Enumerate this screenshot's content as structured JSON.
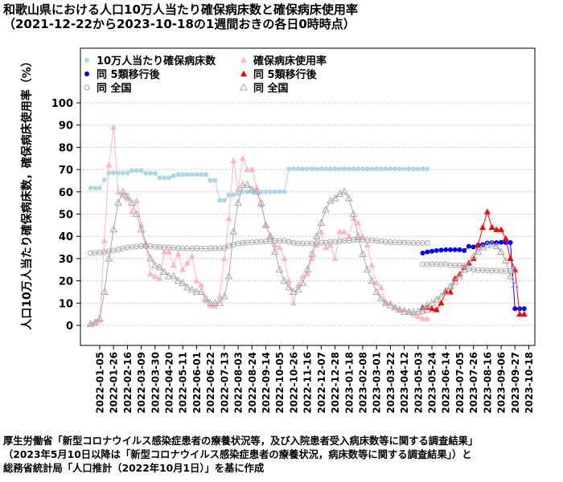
{
  "chart_data": {
    "type": "line",
    "title": "和歌山県における人口10万人当たり確保病床数と確保病床使用率",
    "subtitle": "（2021-12-22から2023-10-18の1週間おきの各日0時時点）",
    "ylabel": "人口10万人当たり確保病床数，確保病床使用率（%）",
    "ylim": [
      0,
      100
    ],
    "yticks": [
      0,
      10,
      20,
      30,
      40,
      50,
      60,
      70,
      80,
      90,
      100
    ],
    "grid": true,
    "legend_position": "top-left",
    "x_start": "2021-12-22",
    "x_end": "2023-10-18",
    "x_tick_labels": [
      "2022-01-05",
      "2022-01-26",
      "2022-02-16",
      "2022-03-09",
      "2022-03-30",
      "2022-04-20",
      "2022-05-11",
      "2022-06-01",
      "2022-06-22",
      "2022-07-13",
      "2022-08-03",
      "2022-08-24",
      "2022-09-14",
      "2022-10-05",
      "2022-10-26",
      "2022-11-16",
      "2022-12-07",
      "2022-12-28",
      "2023-01-18",
      "2023-02-08",
      "2023-03-01",
      "2023-03-22",
      "2023-04-12",
      "2023-05-03",
      "2023-05-24",
      "2023-06-14",
      "2023-07-05",
      "2023-07-26",
      "2023-08-16",
      "2023-09-06",
      "2023-09-27",
      "2023-10-18"
    ],
    "series": [
      {
        "name": "10万人当たり確保病床数",
        "color": "#add8e6",
        "marker": "circle",
        "start": "2021-12-22",
        "values": [
          61.7,
          61.7,
          61.7,
          65.4,
          68.5,
          68.5,
          68.5,
          68.5,
          68.5,
          69.6,
          69.6,
          69.6,
          68.3,
          68.3,
          68.3,
          66.3,
          66.3,
          66.3,
          67.2,
          67.8,
          67.8,
          67.8,
          67.8,
          67.8,
          67.8,
          67.8,
          65.1,
          65.1,
          56.2,
          56.2,
          58.6,
          58.6,
          59.1,
          60.0,
          60.0,
          60.0,
          60.0,
          60.0,
          60.0,
          60.0,
          60.0,
          60.0,
          60.0,
          70.3,
          70.3,
          70.3,
          70.3,
          70.3,
          70.3,
          70.3,
          70.3,
          70.3,
          70.3,
          70.3,
          70.3,
          70.3,
          70.3,
          70.3,
          70.3,
          70.3,
          70.3,
          70.3,
          70.3,
          70.3,
          70.3,
          70.3,
          70.3,
          70.3,
          70.3,
          70.3,
          70.3,
          70.3,
          70.3,
          70.3
        ]
      },
      {
        "name": "確保病床使用率",
        "color": "#ffb6c1",
        "marker": "triangle",
        "start": "2021-12-22",
        "values": [
          0.5,
          1.0,
          2.1,
          38.0,
          72.0,
          89.0,
          60.0,
          58.5,
          57.0,
          51.0,
          56.0,
          45.0,
          37.0,
          23.0,
          22.0,
          21.0,
          33.0,
          33.0,
          27.0,
          32.0,
          25.0,
          28.0,
          31.0,
          20.0,
          18.0,
          11.0,
          9.0,
          8.5,
          13.0,
          30.0,
          48.0,
          74.0,
          61.0,
          75.0,
          70.0,
          70.0,
          62.0,
          54.0,
          45.0,
          40.0,
          36.0,
          35.0,
          30.0,
          20.0,
          10.0,
          18.0,
          22.0,
          23.0,
          30.0,
          36.0,
          42.0,
          35.0,
          36.0,
          30.0,
          42.0,
          42.0,
          40.0,
          48.0,
          46.0,
          40.0,
          36.0,
          27.0,
          19.0,
          17.0,
          10.0,
          10.0,
          8.0,
          7.0,
          7.0,
          6.0,
          5.0,
          4.0,
          3.0,
          3.0
        ]
      },
      {
        "name": "同 5類移行後",
        "color": "#0000ff",
        "marker": "circle",
        "start": "2023-05-10",
        "values": [
          32.5,
          33.0,
          33.3,
          33.6,
          33.8,
          34.0,
          34.0,
          34.0,
          34.0,
          33.6,
          35.5,
          35.2,
          36.0,
          36.3,
          37.0,
          37.2,
          37.2,
          37.3,
          37.2,
          37.2,
          7.5,
          7.5,
          7.5
        ]
      },
      {
        "name": "同 5類移行後",
        "color": "#ff0000",
        "marker": "triangle",
        "start": "2023-05-10",
        "values": [
          8.0,
          8.0,
          7.5,
          7.0,
          10.0,
          15.0,
          15.0,
          21.0,
          23.0,
          26.0,
          28.0,
          30.0,
          36.0,
          44.0,
          51.0,
          44.0,
          43.0,
          43.0,
          39.0,
          30.0,
          25.0,
          5.0,
          5.0
        ]
      },
      {
        "name": "同 全国",
        "color": "#a9a9a9",
        "marker": "open-circle",
        "start": "2021-12-22",
        "values": [
          32.5,
          32.6,
          32.8,
          33.0,
          33.3,
          33.6,
          34.0,
          34.5,
          35.0,
          35.3,
          35.5,
          35.6,
          35.6,
          35.6,
          35.3,
          35.2,
          35.0,
          35.0,
          34.8,
          34.6,
          34.6,
          34.5,
          34.5,
          34.5,
          34.5,
          34.5,
          34.6,
          34.6,
          34.6,
          34.6,
          35.7,
          36.4,
          36.8,
          37.0,
          37.2,
          37.3,
          37.5,
          37.6,
          37.7,
          37.8,
          38.0,
          38.0,
          38.0,
          37.5,
          37.1,
          36.8,
          36.8,
          36.8,
          36.8,
          36.9,
          37.1,
          37.2,
          37.4,
          37.6,
          37.8,
          38.0,
          38.1,
          38.4,
          38.5,
          38.5,
          38.3,
          38.2,
          38.0,
          37.8,
          37.5,
          37.4,
          37.3,
          37.2,
          37.2,
          37.1,
          37.0,
          37.0,
          37.0,
          37.0
        ]
      },
      {
        "name": "同 全国",
        "color": "#a9a9a9",
        "marker": "open-triangle",
        "start": "2021-12-22",
        "values": [
          0.6,
          1.3,
          3.1,
          15.0,
          30.0,
          43.0,
          55.0,
          60.0,
          58.0,
          55.0,
          50.0,
          43.0,
          36.0,
          30.0,
          27.0,
          26.0,
          24.0,
          22.0,
          22.0,
          20.0,
          19.0,
          17.0,
          16.0,
          15.0,
          15.0,
          12.0,
          10.0,
          10.0,
          10.0,
          13.0,
          22.0,
          42.0,
          55.0,
          63.0,
          63.0,
          61.0,
          60.0,
          55.0,
          45.0,
          40.0,
          33.0,
          25.0,
          20.0,
          17.0,
          15.0,
          16.0,
          19.0,
          25.0,
          32.0,
          40.0,
          46.0,
          52.0,
          56.0,
          57.0,
          59.0,
          60.0,
          57.0,
          50.0,
          40.0,
          32.0,
          25.0,
          20.0,
          15.0,
          12.0,
          10.0,
          9.0,
          8.0,
          7.0,
          6.0,
          6.0,
          6.0,
          6.0,
          6.5,
          7.0
        ]
      },
      {
        "name": "同 全国",
        "color": "#a9a9a9",
        "marker": "open-circle",
        "start": "2023-05-10",
        "values": [
          27.5,
          27.5,
          27.5,
          27.5,
          27.5,
          27.5,
          27.0,
          27.0,
          26.9,
          26.8,
          25.5,
          25.0,
          24.8,
          24.8,
          24.7,
          24.6,
          24.6,
          24.5,
          24.4,
          24.4,
          24.4
        ]
      },
      {
        "name": "同 全国",
        "color": "#a9a9a9",
        "marker": "open-triangle",
        "start": "2023-05-10",
        "values": [
          8.0,
          9.0,
          10.0,
          11.5,
          13.0,
          15.5,
          17.5,
          19.5,
          22.0,
          25.0,
          28.0,
          31.0,
          33.0,
          35.0,
          36.0,
          36.5,
          35.5,
          33.0,
          29.0,
          22.0,
          18.0
        ]
      }
    ]
  },
  "legend": {
    "items": [
      {
        "label": "10万人当たり確保病床数",
        "color": "#add8e6",
        "marker": "circle"
      },
      {
        "label": "確保病床使用率",
        "color": "#ffb6c1",
        "marker": "triangle"
      },
      {
        "label": "同 5類移行後",
        "color": "#0000ff",
        "marker": "circle"
      },
      {
        "label": "同 5類移行後",
        "color": "#ff0000",
        "marker": "triangle"
      },
      {
        "label": "同 全国",
        "color": "#a9a9a9",
        "marker": "open-circle"
      },
      {
        "label": "同 全国",
        "color": "#a9a9a9",
        "marker": "open-triangle"
      }
    ]
  },
  "source": {
    "lines": [
      "厚生労働省「新型コロナウイルス感染症患者の療養状況等，及び入院患者受入病床数等に関する調査結果」",
      "（2023年5月10日以降は「新型コロナウイルス感染症患者の療養状況，病床数等に関する調査結果」）と",
      "総務省統計局「人口推計（2022年10月1日）」を基に作成"
    ]
  }
}
